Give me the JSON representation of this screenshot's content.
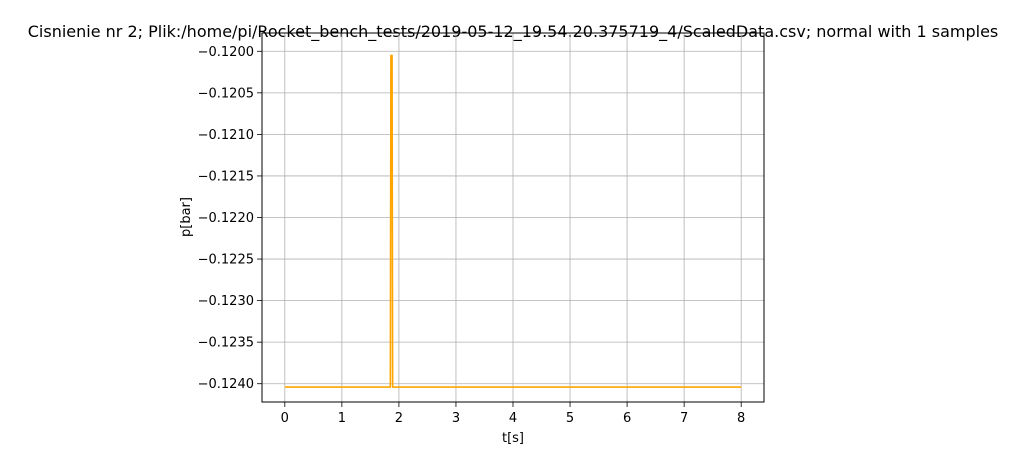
{
  "chart_data": {
    "type": "line",
    "title": "Cisnienie nr 2; Plik:/home/pi/Rocket_bench_tests/2019-05-12_19.54.20.375719_4/ScaledData.csv; normal with 1 samples",
    "xlabel": "t[s]",
    "ylabel": "p[bar]",
    "xlim": [
      -0.4,
      8.4
    ],
    "ylim": [
      -0.12422,
      -0.11978
    ],
    "x_ticks": [
      0,
      1,
      2,
      3,
      4,
      5,
      6,
      7,
      8
    ],
    "x_tick_labels": [
      "0",
      "1",
      "2",
      "3",
      "4",
      "5",
      "6",
      "7",
      "8"
    ],
    "y_ticks": [
      -0.124,
      -0.1235,
      -0.123,
      -0.1225,
      -0.122,
      -0.1215,
      -0.121,
      -0.1205,
      -0.12
    ],
    "y_tick_labels": [
      "−0.1240",
      "−0.1235",
      "−0.1230",
      "−0.1225",
      "−0.1220",
      "−0.1215",
      "−0.1210",
      "−0.1205",
      "−0.1200"
    ],
    "grid": true,
    "series": [
      {
        "color": "#ffa500",
        "x": [
          0,
          1.85,
          1.86,
          1.88,
          1.89,
          8.0
        ],
        "y": [
          -0.12404,
          -0.12404,
          -0.12005,
          -0.12005,
          -0.12404,
          -0.12404
        ]
      }
    ]
  }
}
